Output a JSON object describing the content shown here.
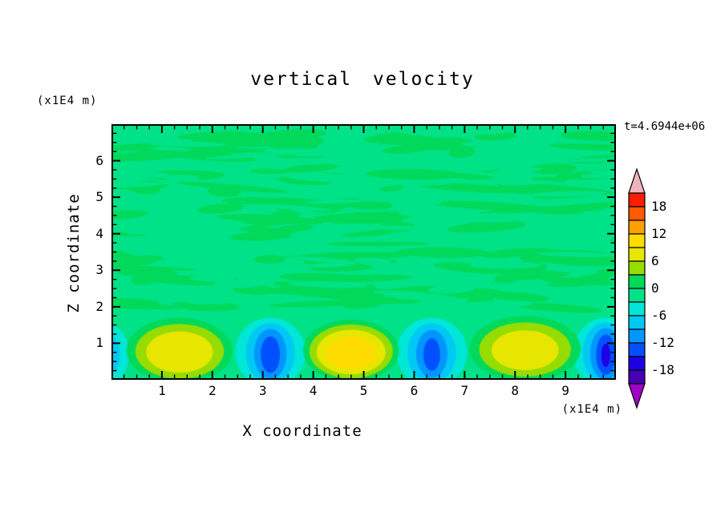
{
  "chart_data": {
    "type": "heatmap",
    "title": "vertical velocity",
    "annotation": "t=4.6944e+06",
    "xlabel": "X coordinate",
    "ylabel": "Z coordinate",
    "x_units": "(x1E4 m)",
    "y_units": "(x1E4 m)",
    "x_range": [
      0,
      10
    ],
    "z_range": [
      0,
      7
    ],
    "x_ticks": [
      "1",
      "2",
      "3",
      "4",
      "5",
      "6",
      "7",
      "8",
      "9"
    ],
    "y_ticks": [
      "1",
      "2",
      "3",
      "4",
      "5",
      "6"
    ],
    "colorbar": {
      "tick_labels": [
        "18",
        "12",
        "6",
        "0",
        "-6",
        "-12",
        "-18"
      ],
      "levels_step": 3,
      "level_min": -21,
      "level_max": 21,
      "band_colors_low_to_high": [
        "#4600B4",
        "#1E00E6",
        "#0050FF",
        "#0096FF",
        "#00C8F5",
        "#00E6D7",
        "#00E287",
        "#00D95A",
        "#96DC00",
        "#E6E600",
        "#FFDC00",
        "#FFA000",
        "#FF5A00",
        "#FA1E00"
      ],
      "under_color": "#A000C8",
      "over_color": "#F0B4BE"
    },
    "field": {
      "description": "mostly near-zero vertical velocity aloft with streaky weak anomalies; alternating convective updrafts (yellow) and downdrafts (cyan/blue) below z=2",
      "background_level_color": "#00E287",
      "texture_color": "#00D95A",
      "updrafts": [
        {
          "x": 1.35,
          "z": 0.8,
          "rx": 1.05,
          "rz": 0.9,
          "peak": 8.5
        },
        {
          "x": 4.75,
          "z": 0.8,
          "rx": 0.95,
          "rz": 0.85,
          "peak": 11
        },
        {
          "x": 8.2,
          "z": 0.85,
          "rx": 1.1,
          "rz": 0.9,
          "peak": 8
        }
      ],
      "downdrafts": [
        {
          "x": -0.05,
          "z": 0.7,
          "rx": 0.4,
          "rz": 0.8,
          "peak": -4
        },
        {
          "x": 3.15,
          "z": 0.75,
          "rx": 0.7,
          "rz": 0.95,
          "peak": -11
        },
        {
          "x": 6.35,
          "z": 0.75,
          "rx": 0.7,
          "rz": 0.95,
          "peak": -10
        },
        {
          "x": 9.8,
          "z": 0.75,
          "rx": 0.65,
          "rz": 0.95,
          "peak": -12
        }
      ]
    }
  }
}
